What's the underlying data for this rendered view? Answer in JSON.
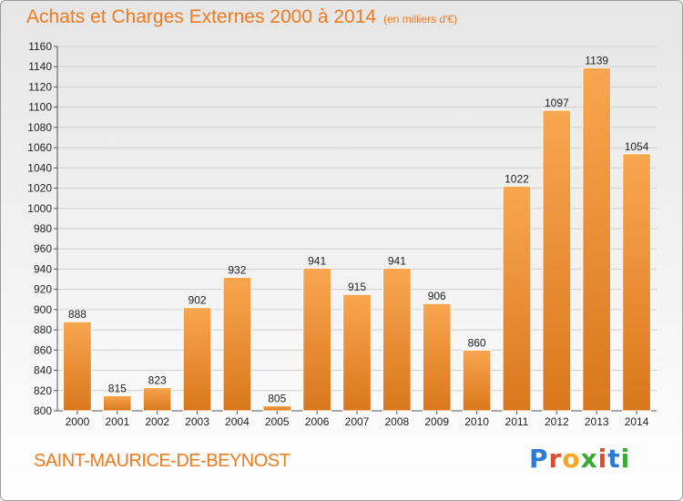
{
  "header": {
    "title": "Achats et Charges Externes 2000 à 2014",
    "unit": "(en milliers d'€)"
  },
  "footer": {
    "commune": "SAINT-MAURICE-DE-BEYNOST",
    "logo_letters": [
      "P",
      "r",
      "o",
      "x",
      "i",
      "t",
      "i"
    ],
    "logo_colors": [
      "#2e7bd6",
      "#e8492a",
      "#f5a623",
      "#3aaa35",
      "#e8492a",
      "#2e7bd6",
      "#3aaa35"
    ]
  },
  "colors": {
    "bar_top": "#f9a650",
    "bar_bottom": "#d9771c",
    "accent": "#f07a1e",
    "grid": "#d0d0d0"
  },
  "chart_data": {
    "type": "bar",
    "categories": [
      "2000",
      "2001",
      "2002",
      "2003",
      "2004",
      "2005",
      "2006",
      "2007",
      "2008",
      "2009",
      "2010",
      "2011",
      "2012",
      "2013",
      "2014"
    ],
    "values": [
      888,
      815,
      823,
      902,
      932,
      805,
      941,
      915,
      941,
      906,
      860,
      1022,
      1097,
      1139,
      1054
    ],
    "ylim": [
      800,
      1160
    ],
    "yticks": [
      800,
      820,
      840,
      860,
      880,
      900,
      920,
      940,
      960,
      980,
      1000,
      1020,
      1040,
      1060,
      1080,
      1100,
      1120,
      1140,
      1160
    ],
    "grid": true
  }
}
